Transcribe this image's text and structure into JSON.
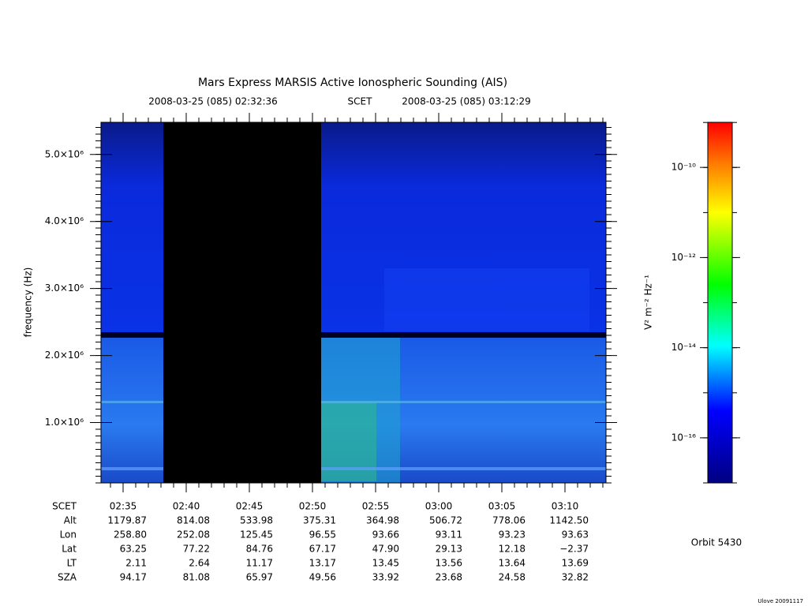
{
  "chart_data": {
    "type": "spectrogram",
    "title": "Mars Express MARSIS Active Ionospheric Sounding (AIS)",
    "time_start": "2008-03-25 (085) 02:32:36",
    "time_system": "SCET",
    "time_end": "2008-03-25 (085) 03:12:29",
    "ylabel": "frequency (Hz)",
    "ylim": [
      100000,
      5480000
    ],
    "yticks": [
      {
        "value": 1000000,
        "label": "1.0×10⁶"
      },
      {
        "value": 2000000,
        "label": "2.0×10⁶"
      },
      {
        "value": 3000000,
        "label": "3.0×10⁶"
      },
      {
        "value": 4000000,
        "label": "4.0×10⁶"
      },
      {
        "value": 5000000,
        "label": "5.0×10⁶"
      }
    ],
    "xticks": [
      "02:35",
      "02:40",
      "02:45",
      "02:50",
      "02:55",
      "03:00",
      "03:05",
      "03:10"
    ],
    "colorbar": {
      "label": "V² m⁻² Hz⁻¹",
      "log": true,
      "lim": [
        1e-17,
        1e-09
      ],
      "ticks": [
        {
          "value": 1e-10,
          "label": "10⁻¹⁰"
        },
        {
          "value": 1e-12,
          "label": "10⁻¹²"
        },
        {
          "value": 1e-14,
          "label": "10⁻¹⁴"
        },
        {
          "value": 1e-16,
          "label": "10⁻¹⁶"
        }
      ]
    }
  },
  "ephemeris": {
    "scet_label": "SCET",
    "rows": [
      {
        "label": "Alt",
        "values": [
          "1179.87",
          "814.08",
          "533.98",
          "375.31",
          "364.98",
          "506.72",
          "778.06",
          "1142.50"
        ]
      },
      {
        "label": "Lon",
        "values": [
          "258.80",
          "252.08",
          "125.45",
          "96.55",
          "93.66",
          "93.11",
          "93.23",
          "93.63"
        ]
      },
      {
        "label": "Lat",
        "values": [
          "63.25",
          "77.22",
          "84.76",
          "67.17",
          "47.90",
          "29.13",
          "12.18",
          "−2.37"
        ]
      },
      {
        "label": "LT",
        "values": [
          "2.11",
          "2.64",
          "11.17",
          "13.17",
          "13.45",
          "13.56",
          "13.64",
          "13.69"
        ]
      },
      {
        "label": "SZA",
        "values": [
          "94.17",
          "81.08",
          "65.97",
          "49.56",
          "33.92",
          "23.68",
          "24.58",
          "32.82"
        ]
      }
    ]
  },
  "orbit": "Orbit 5430",
  "footer": "Ulove 20091117"
}
